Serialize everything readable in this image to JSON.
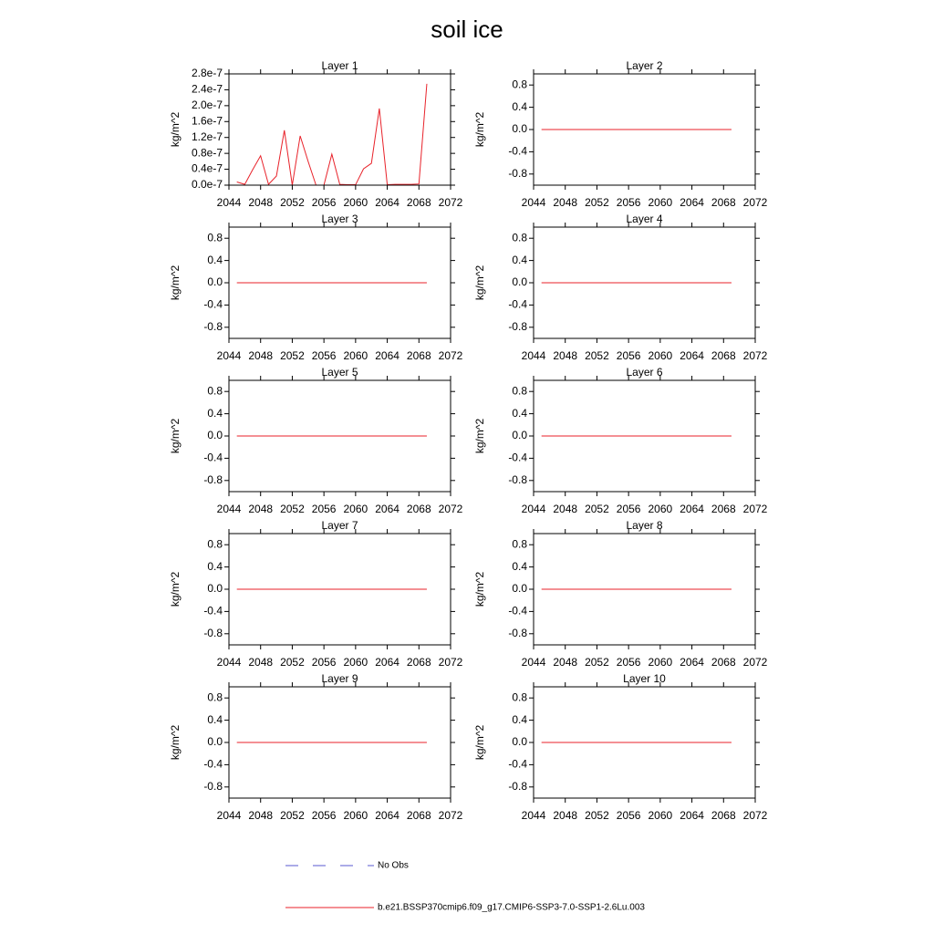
{
  "title": "soil ice",
  "legend": [
    {
      "label": "No Obs",
      "color": "#5a5ad0",
      "dashed": true
    },
    {
      "label": "b.e21.BSSP370cmip6.f09_g17.CMIP6-SSP3-7.0-SSP1-2.6Lu.003",
      "color": "#e8222a",
      "dashed": false
    }
  ],
  "chart_data": [
    {
      "type": "line",
      "title": "Layer 1",
      "y_label": "kg/m^2",
      "color": "#e8222a",
      "x": [
        2045,
        2046,
        2047,
        2048,
        2049,
        2050,
        2051,
        2052,
        2053,
        2054,
        2055,
        2056,
        2057,
        2058,
        2059,
        2060,
        2061,
        2062,
        2063,
        2064,
        2065,
        2066,
        2067,
        2068,
        2069
      ],
      "values": [
        8e-09,
        2e-09,
        3.9e-08,
        7.4e-08,
        2e-09,
        2.3e-08,
        1.38e-07,
        0,
        1.24e-07,
        6e-08,
        0,
        0,
        7.8e-08,
        2e-09,
        1e-09,
        1e-09,
        4.1e-08,
        5.5e-08,
        1.93e-07,
        1e-09,
        2e-09,
        2e-09,
        2e-09,
        3e-09,
        2.55e-07
      ],
      "xlim": [
        2044,
        2072
      ],
      "xticks": [
        2044,
        2048,
        2052,
        2056,
        2060,
        2064,
        2068,
        2072
      ],
      "ylim": [
        0,
        2.8e-07
      ],
      "yticks": [
        {
          "value": 0,
          "label": "0.0e-7"
        },
        {
          "value": 4e-08,
          "label": "0.4e-7"
        },
        {
          "value": 8e-08,
          "label": "0.8e-7"
        },
        {
          "value": 1.2e-07,
          "label": "1.2e-7"
        },
        {
          "value": 1.6e-07,
          "label": "1.6e-7"
        },
        {
          "value": 2e-07,
          "label": "2.0e-7"
        },
        {
          "value": 2.4e-07,
          "label": "2.4e-7"
        },
        {
          "value": 2.8e-07,
          "label": "2.8e-7"
        }
      ]
    },
    {
      "type": "line",
      "title": "Layer 2",
      "y_label": "kg/m^2",
      "color": "#e8222a",
      "x": [
        2045,
        2046,
        2047,
        2048,
        2049,
        2050,
        2051,
        2052,
        2053,
        2054,
        2055,
        2056,
        2057,
        2058,
        2059,
        2060,
        2061,
        2062,
        2063,
        2064,
        2065,
        2066,
        2067,
        2068,
        2069
      ],
      "values": [
        0,
        0,
        0,
        0,
        0,
        0,
        0,
        0,
        0,
        0,
        0,
        0,
        0,
        0,
        0,
        0,
        0,
        0,
        0,
        0,
        0,
        0,
        0,
        0,
        0
      ],
      "xlim": [
        2044,
        2072
      ],
      "xticks": [
        2044,
        2048,
        2052,
        2056,
        2060,
        2064,
        2068,
        2072
      ],
      "ylim": [
        -1,
        1
      ],
      "yticks": [
        -0.8,
        -0.4,
        {
          "value": 0,
          "label": "0.0"
        },
        0.4,
        0.8
      ]
    },
    {
      "type": "line",
      "title": "Layer 3",
      "y_label": "kg/m^2",
      "color": "#e8222a",
      "x": [
        2045,
        2046,
        2047,
        2048,
        2049,
        2050,
        2051,
        2052,
        2053,
        2054,
        2055,
        2056,
        2057,
        2058,
        2059,
        2060,
        2061,
        2062,
        2063,
        2064,
        2065,
        2066,
        2067,
        2068,
        2069
      ],
      "values": [
        0,
        0,
        0,
        0,
        0,
        0,
        0,
        0,
        0,
        0,
        0,
        0,
        0,
        0,
        0,
        0,
        0,
        0,
        0,
        0,
        0,
        0,
        0,
        0,
        0
      ],
      "xlim": [
        2044,
        2072
      ],
      "xticks": [
        2044,
        2048,
        2052,
        2056,
        2060,
        2064,
        2068,
        2072
      ],
      "ylim": [
        -1,
        1
      ],
      "yticks": [
        -0.8,
        -0.4,
        {
          "value": 0,
          "label": "0.0"
        },
        0.4,
        0.8
      ]
    },
    {
      "type": "line",
      "title": "Layer 4",
      "y_label": "kg/m^2",
      "color": "#e8222a",
      "x": [
        2045,
        2046,
        2047,
        2048,
        2049,
        2050,
        2051,
        2052,
        2053,
        2054,
        2055,
        2056,
        2057,
        2058,
        2059,
        2060,
        2061,
        2062,
        2063,
        2064,
        2065,
        2066,
        2067,
        2068,
        2069
      ],
      "values": [
        0,
        0,
        0,
        0,
        0,
        0,
        0,
        0,
        0,
        0,
        0,
        0,
        0,
        0,
        0,
        0,
        0,
        0,
        0,
        0,
        0,
        0,
        0,
        0,
        0
      ],
      "xlim": [
        2044,
        2072
      ],
      "xticks": [
        2044,
        2048,
        2052,
        2056,
        2060,
        2064,
        2068,
        2072
      ],
      "ylim": [
        -1,
        1
      ],
      "yticks": [
        -0.8,
        -0.4,
        {
          "value": 0,
          "label": "0.0"
        },
        0.4,
        0.8
      ]
    },
    {
      "type": "line",
      "title": "Layer 5",
      "y_label": "kg/m^2",
      "color": "#e8222a",
      "x": [
        2045,
        2046,
        2047,
        2048,
        2049,
        2050,
        2051,
        2052,
        2053,
        2054,
        2055,
        2056,
        2057,
        2058,
        2059,
        2060,
        2061,
        2062,
        2063,
        2064,
        2065,
        2066,
        2067,
        2068,
        2069
      ],
      "values": [
        0,
        0,
        0,
        0,
        0,
        0,
        0,
        0,
        0,
        0,
        0,
        0,
        0,
        0,
        0,
        0,
        0,
        0,
        0,
        0,
        0,
        0,
        0,
        0,
        0
      ],
      "xlim": [
        2044,
        2072
      ],
      "xticks": [
        2044,
        2048,
        2052,
        2056,
        2060,
        2064,
        2068,
        2072
      ],
      "ylim": [
        -1,
        1
      ],
      "yticks": [
        -0.8,
        -0.4,
        {
          "value": 0,
          "label": "0.0"
        },
        0.4,
        0.8
      ]
    },
    {
      "type": "line",
      "title": "Layer 6",
      "y_label": "kg/m^2",
      "color": "#e8222a",
      "x": [
        2045,
        2046,
        2047,
        2048,
        2049,
        2050,
        2051,
        2052,
        2053,
        2054,
        2055,
        2056,
        2057,
        2058,
        2059,
        2060,
        2061,
        2062,
        2063,
        2064,
        2065,
        2066,
        2067,
        2068,
        2069
      ],
      "values": [
        0,
        0,
        0,
        0,
        0,
        0,
        0,
        0,
        0,
        0,
        0,
        0,
        0,
        0,
        0,
        0,
        0,
        0,
        0,
        0,
        0,
        0,
        0,
        0,
        0
      ],
      "xlim": [
        2044,
        2072
      ],
      "xticks": [
        2044,
        2048,
        2052,
        2056,
        2060,
        2064,
        2068,
        2072
      ],
      "ylim": [
        -1,
        1
      ],
      "yticks": [
        -0.8,
        -0.4,
        {
          "value": 0,
          "label": "0.0"
        },
        0.4,
        0.8
      ]
    },
    {
      "type": "line",
      "title": "Layer 7",
      "y_label": "kg/m^2",
      "color": "#e8222a",
      "x": [
        2045,
        2046,
        2047,
        2048,
        2049,
        2050,
        2051,
        2052,
        2053,
        2054,
        2055,
        2056,
        2057,
        2058,
        2059,
        2060,
        2061,
        2062,
        2063,
        2064,
        2065,
        2066,
        2067,
        2068,
        2069
      ],
      "values": [
        0,
        0,
        0,
        0,
        0,
        0,
        0,
        0,
        0,
        0,
        0,
        0,
        0,
        0,
        0,
        0,
        0,
        0,
        0,
        0,
        0,
        0,
        0,
        0,
        0
      ],
      "xlim": [
        2044,
        2072
      ],
      "xticks": [
        2044,
        2048,
        2052,
        2056,
        2060,
        2064,
        2068,
        2072
      ],
      "ylim": [
        -1,
        1
      ],
      "yticks": [
        -0.8,
        -0.4,
        {
          "value": 0,
          "label": "0.0"
        },
        0.4,
        0.8
      ]
    },
    {
      "type": "line",
      "title": "Layer 8",
      "y_label": "kg/m^2",
      "color": "#e8222a",
      "x": [
        2045,
        2046,
        2047,
        2048,
        2049,
        2050,
        2051,
        2052,
        2053,
        2054,
        2055,
        2056,
        2057,
        2058,
        2059,
        2060,
        2061,
        2062,
        2063,
        2064,
        2065,
        2066,
        2067,
        2068,
        2069
      ],
      "values": [
        0,
        0,
        0,
        0,
        0,
        0,
        0,
        0,
        0,
        0,
        0,
        0,
        0,
        0,
        0,
        0,
        0,
        0,
        0,
        0,
        0,
        0,
        0,
        0,
        0
      ],
      "xlim": [
        2044,
        2072
      ],
      "xticks": [
        2044,
        2048,
        2052,
        2056,
        2060,
        2064,
        2068,
        2072
      ],
      "ylim": [
        -1,
        1
      ],
      "yticks": [
        -0.8,
        -0.4,
        {
          "value": 0,
          "label": "0.0"
        },
        0.4,
        0.8
      ]
    },
    {
      "type": "line",
      "title": "Layer 9",
      "y_label": "kg/m^2",
      "color": "#e8222a",
      "x": [
        2045,
        2046,
        2047,
        2048,
        2049,
        2050,
        2051,
        2052,
        2053,
        2054,
        2055,
        2056,
        2057,
        2058,
        2059,
        2060,
        2061,
        2062,
        2063,
        2064,
        2065,
        2066,
        2067,
        2068,
        2069
      ],
      "values": [
        0,
        0,
        0,
        0,
        0,
        0,
        0,
        0,
        0,
        0,
        0,
        0,
        0,
        0,
        0,
        0,
        0,
        0,
        0,
        0,
        0,
        0,
        0,
        0,
        0
      ],
      "xlim": [
        2044,
        2072
      ],
      "xticks": [
        2044,
        2048,
        2052,
        2056,
        2060,
        2064,
        2068,
        2072
      ],
      "ylim": [
        -1,
        1
      ],
      "yticks": [
        -0.8,
        -0.4,
        {
          "value": 0,
          "label": "0.0"
        },
        0.4,
        0.8
      ]
    },
    {
      "type": "line",
      "title": "Layer 10",
      "y_label": "kg/m^2",
      "color": "#e8222a",
      "x": [
        2045,
        2046,
        2047,
        2048,
        2049,
        2050,
        2051,
        2052,
        2053,
        2054,
        2055,
        2056,
        2057,
        2058,
        2059,
        2060,
        2061,
        2062,
        2063,
        2064,
        2065,
        2066,
        2067,
        2068,
        2069
      ],
      "values": [
        0,
        0,
        0,
        0,
        0,
        0,
        0,
        0,
        0,
        0,
        0,
        0,
        0,
        0,
        0,
        0,
        0,
        0,
        0,
        0,
        0,
        0,
        0,
        0,
        0
      ],
      "xlim": [
        2044,
        2072
      ],
      "xticks": [
        2044,
        2048,
        2052,
        2056,
        2060,
        2064,
        2068,
        2072
      ],
      "ylim": [
        -1,
        1
      ],
      "yticks": [
        -0.8,
        -0.4,
        {
          "value": 0,
          "label": "0.0"
        },
        0.4,
        0.8
      ]
    }
  ]
}
